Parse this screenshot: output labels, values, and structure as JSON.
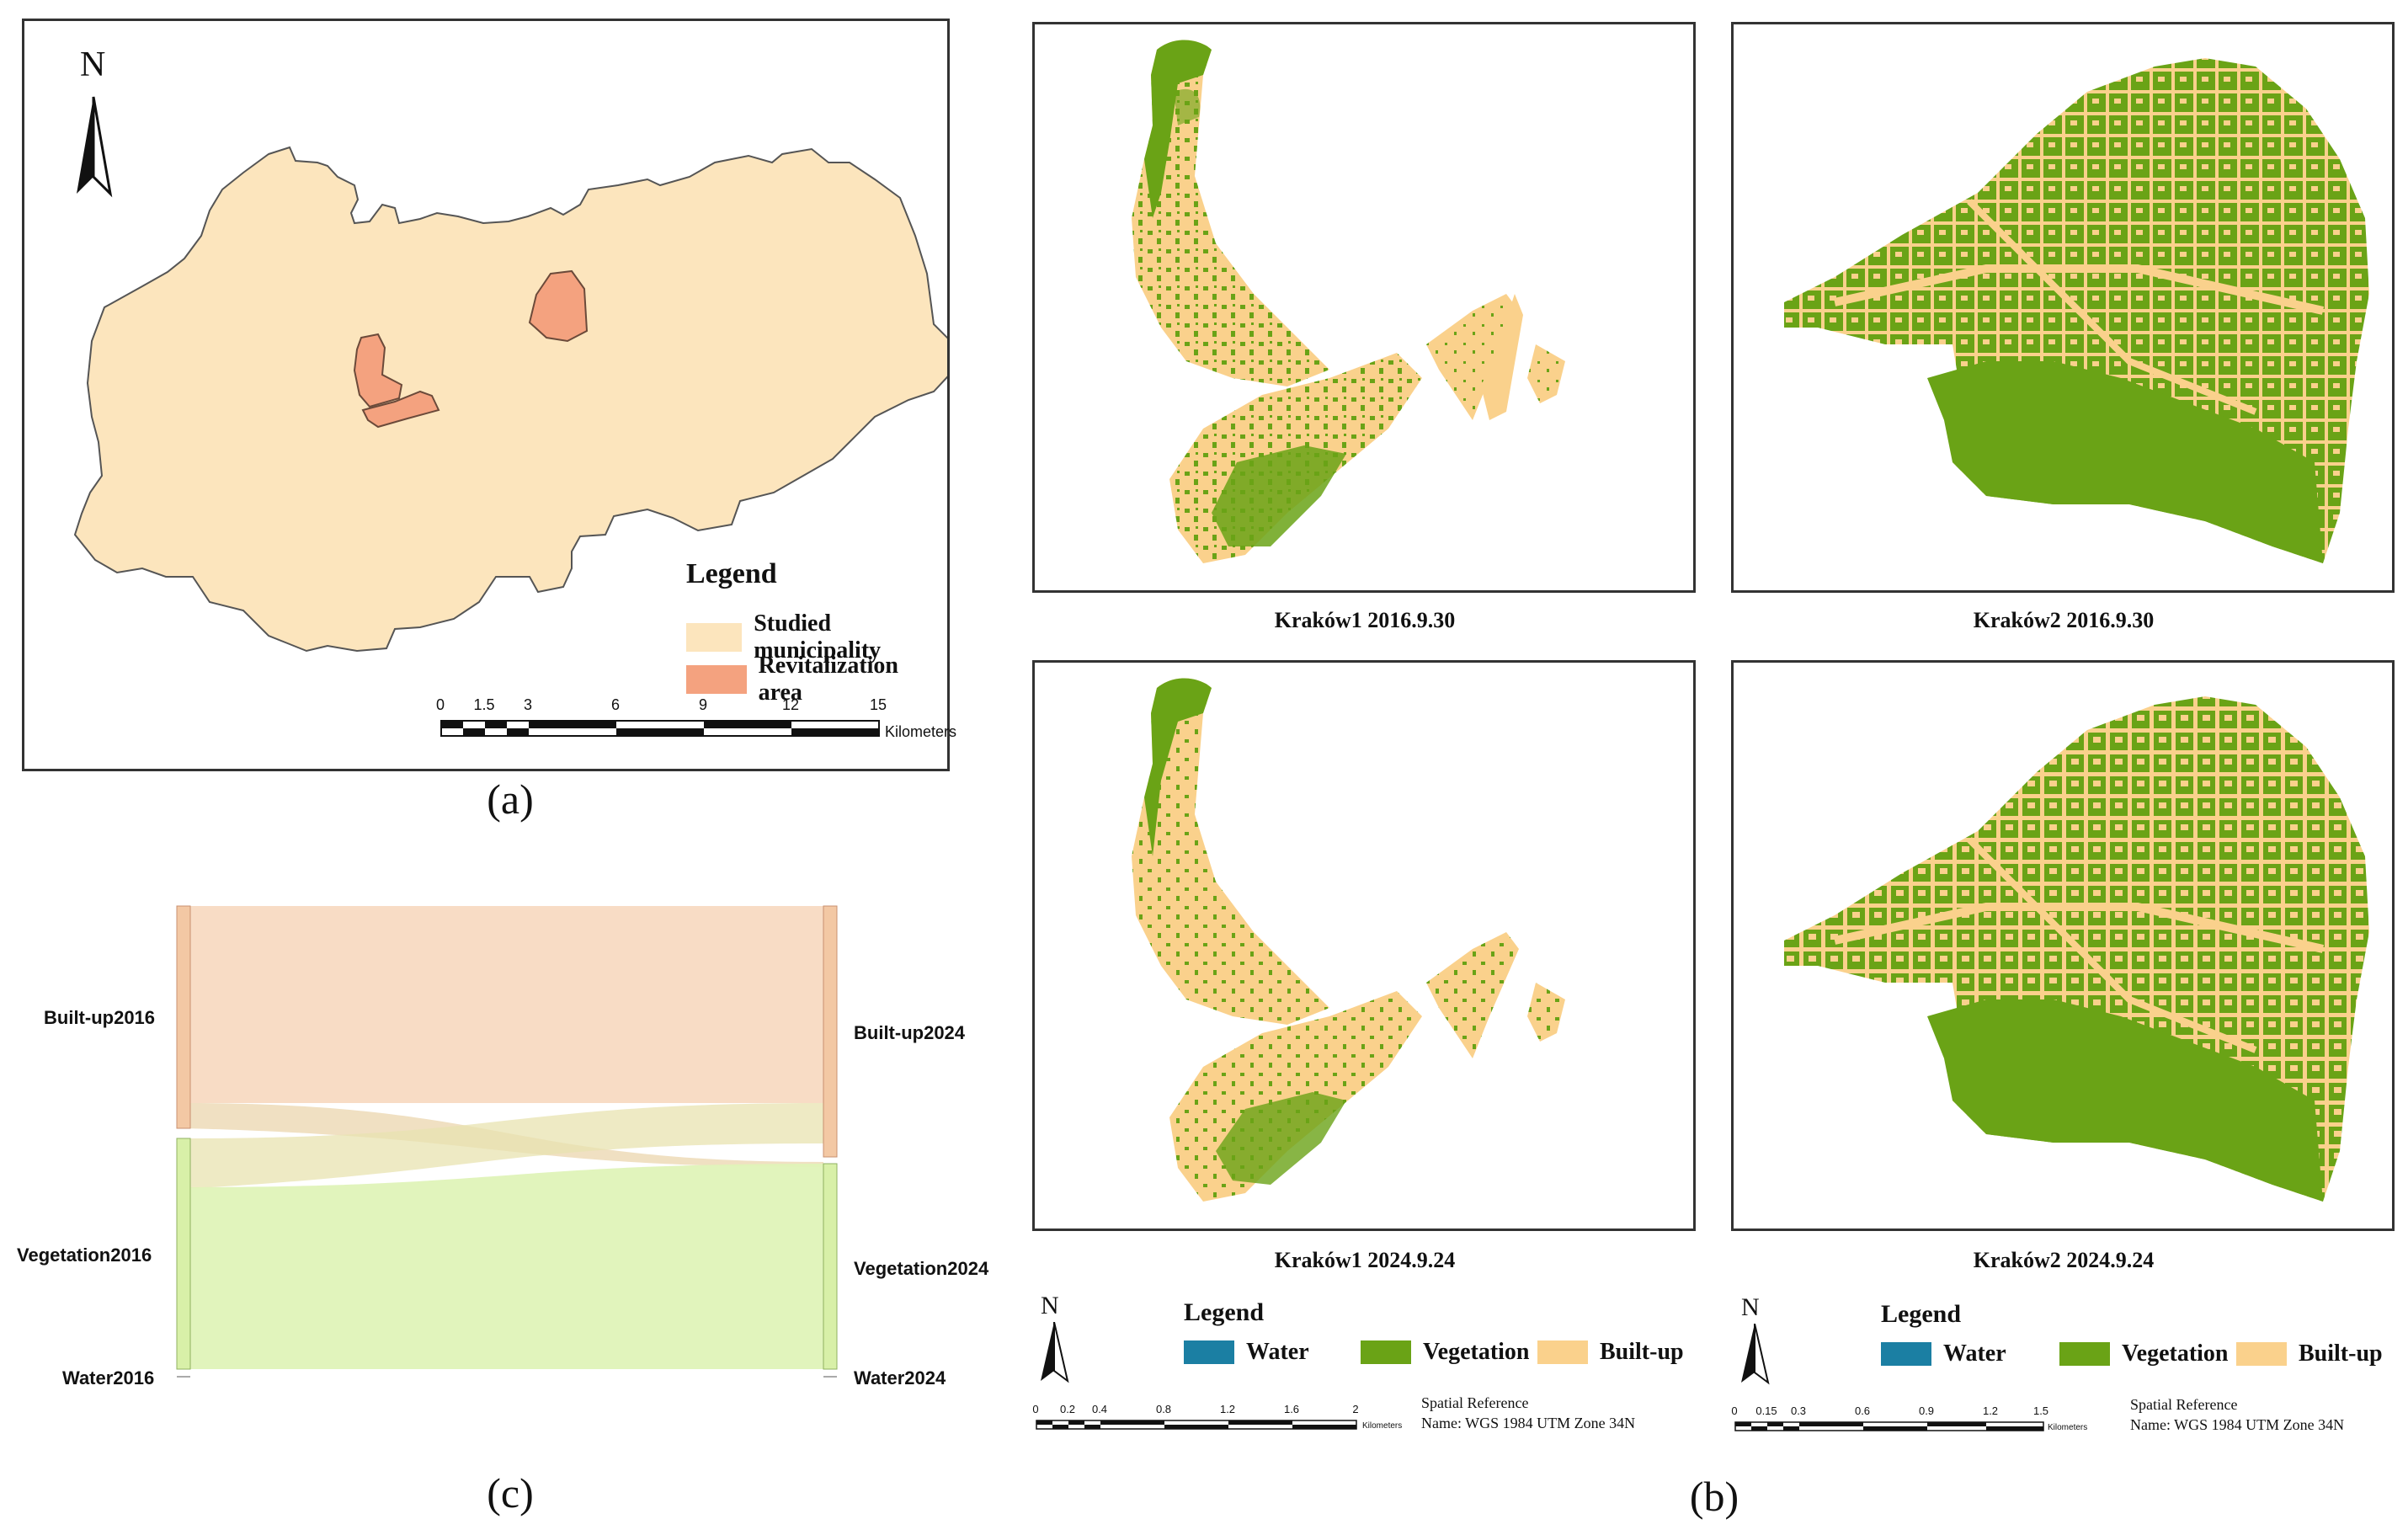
{
  "panel_a": {
    "north_label": "N",
    "legend_title": "Legend",
    "legend_items": [
      {
        "label": "Studied municipality",
        "color": "#fce5bd"
      },
      {
        "label": "Revitalization area",
        "color": "#f4a27f"
      }
    ],
    "scale_ticks": [
      "0",
      "1.5",
      "3",
      "6",
      "9",
      "12",
      "15"
    ],
    "scale_unit": "Kilometers",
    "caption": "(a)"
  },
  "panel_b": {
    "maps": [
      {
        "caption": "Kraków1 2016.9.30"
      },
      {
        "caption": "Kraków2 2016.9.30"
      },
      {
        "caption": "Kraków1 2024.9.24"
      },
      {
        "caption": "Kraków2 2024.9.24"
      }
    ],
    "legend_left": {
      "north_label": "N",
      "title": "Legend",
      "items": [
        {
          "label": "Water",
          "color": "#1b7fa3"
        },
        {
          "label": "Vegetation",
          "color": "#6aa316"
        },
        {
          "label": "Built-up",
          "color": "#fad18c"
        }
      ],
      "scale_ticks": [
        "0",
        "0.2",
        "0.4",
        "0.8",
        "1.2",
        "1.6",
        "2"
      ],
      "scale_unit": "Kilometers",
      "spatial_ref_1": "Spatial Reference",
      "spatial_ref_2": "Name: WGS 1984 UTM Zone 34N"
    },
    "legend_right": {
      "north_label": "N",
      "title": "Legend",
      "items": [
        {
          "label": "Water",
          "color": "#1b7fa3"
        },
        {
          "label": "Vegetation",
          "color": "#6aa316"
        },
        {
          "label": "Built-up",
          "color": "#fad18c"
        }
      ],
      "scale_ticks": [
        "0",
        "0.15",
        "0.3",
        "0.6",
        "0.9",
        "1.2",
        "1.5"
      ],
      "scale_unit": "Kilometers",
      "spatial_ref_1": "Spatial Reference",
      "spatial_ref_2": "Name: WGS 1984 UTM Zone 34N"
    },
    "caption": "(b)"
  },
  "panel_c": {
    "left_nodes": [
      "Built-up2016",
      "Vegetation2016",
      "Water2016"
    ],
    "right_nodes": [
      "Built-up2024",
      "Vegetation2024",
      "Water2024"
    ],
    "colors": {
      "built": "#f7d6bb",
      "veg": "#dff3b8",
      "built_node": "#f3c8a4",
      "veg_node": "#d8f0a8"
    },
    "caption": "(c)"
  }
}
